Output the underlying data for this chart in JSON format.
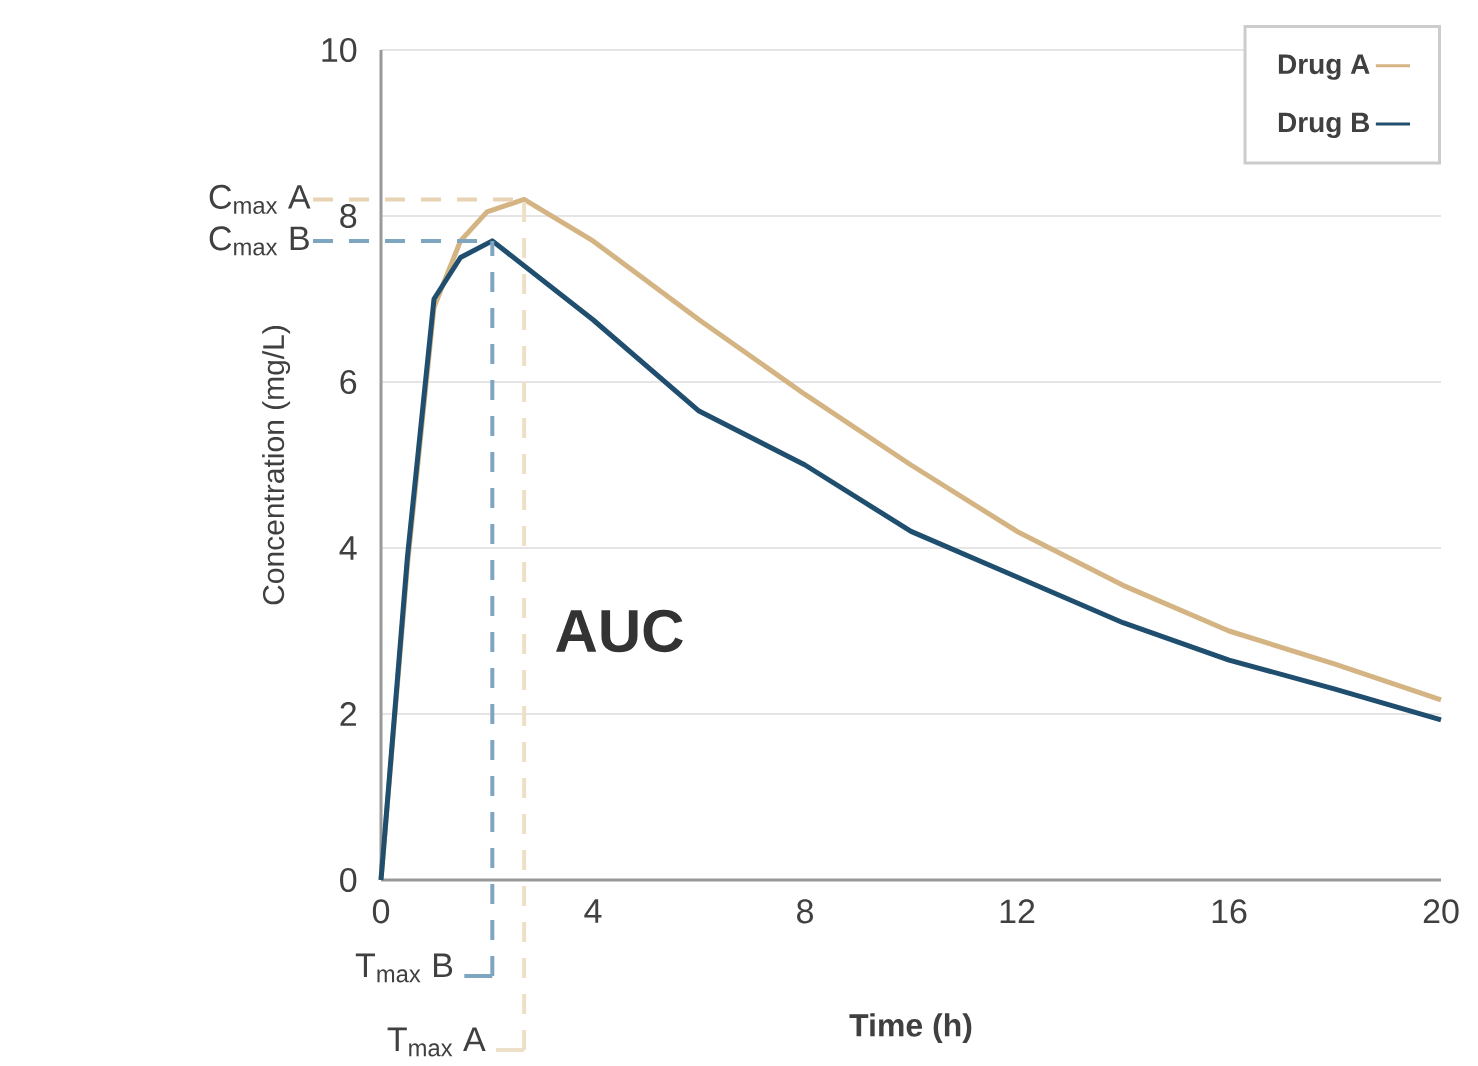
{
  "chart_data": {
    "type": "line",
    "xlabel": "Time (h)",
    "ylabel": "Concentration (mg/L)",
    "xlim": [
      0,
      20
    ],
    "ylim": [
      0,
      10
    ],
    "xticks": [
      0,
      4,
      8,
      12,
      16,
      20
    ],
    "yticks": [
      0,
      2,
      4,
      6,
      8,
      10
    ],
    "grid": "y",
    "legend": "top right",
    "line_style": "solid",
    "marker": "none",
    "series": [
      {
        "name": "Drug A",
        "color": "#d4b483",
        "x": [
          0,
          0.5,
          1.0,
          1.5,
          2.0,
          2.7,
          4,
          6,
          8,
          10,
          12,
          14,
          16,
          18,
          20
        ],
        "values": [
          0,
          3.8,
          6.9,
          7.7,
          8.05,
          8.2,
          7.7,
          6.75,
          5.85,
          5.0,
          4.2,
          3.55,
          3.0,
          2.6,
          2.17
        ]
      },
      {
        "name": "Drug B",
        "color": "#1f4e6e",
        "x": [
          0,
          0.5,
          1.0,
          1.5,
          2.1,
          4,
          6,
          8,
          10,
          12,
          14,
          16,
          18,
          20
        ],
        "values": [
          0,
          3.9,
          7.0,
          7.5,
          7.7,
          6.75,
          5.65,
          5.0,
          4.2,
          3.65,
          3.1,
          2.65,
          2.3,
          1.93
        ]
      }
    ],
    "ref_lines": [
      {
        "axis": "y",
        "value": 8.2,
        "label": "C$_{max}$ A",
        "color": "#e8d4b4",
        "line_style": "dashed"
      },
      {
        "axis": "y",
        "value": 7.7,
        "label": "C$_{max}$ B",
        "color": "#7fa6c0",
        "line_style": "dashed"
      },
      {
        "axis": "x",
        "value": 2.1,
        "label": "T$_{max}$ B",
        "color": "#7fa6c0",
        "line_style": "dashed"
      },
      {
        "axis": "x",
        "value": 2.7,
        "label": "T$_{max}$ A",
        "color": "#eee0c8",
        "line_style": "dashed"
      }
    ],
    "annotations": [
      "AUC"
    ]
  }
}
